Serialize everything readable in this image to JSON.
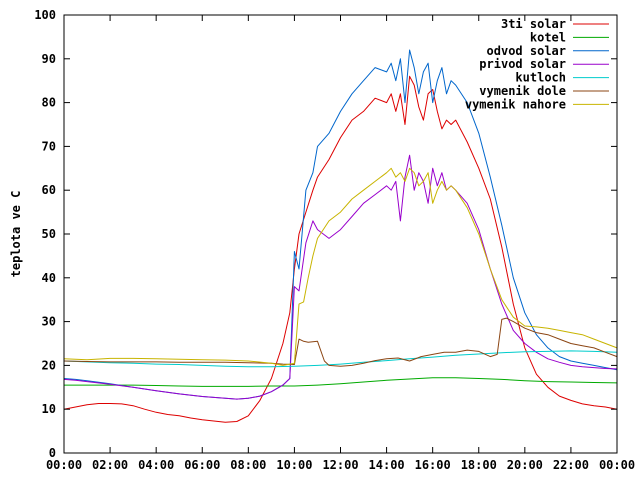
{
  "chart_data": {
    "type": "line",
    "title": "",
    "xlabel": "",
    "ylabel": "teplota ve C",
    "xlim": [
      0,
      24
    ],
    "ylim": [
      0,
      100
    ],
    "x_ticks": [
      "00:00",
      "02:00",
      "04:00",
      "06:00",
      "08:00",
      "10:00",
      "12:00",
      "14:00",
      "16:00",
      "18:00",
      "20:00",
      "22:00",
      "00:00"
    ],
    "y_ticks": [
      0,
      10,
      20,
      30,
      40,
      50,
      60,
      70,
      80,
      90,
      100
    ],
    "grid": false,
    "legend_position": "top-right",
    "series": [
      {
        "name": "3ti solar",
        "color": "#dd0000",
        "x": [
          0,
          0.5,
          1,
          1.5,
          2,
          2.5,
          3,
          3.5,
          4,
          4.5,
          5,
          5.5,
          6,
          6.5,
          7,
          7.5,
          8,
          8.5,
          9,
          9.5,
          9.8,
          10,
          10.2,
          10.5,
          10.8,
          11,
          11.5,
          12,
          12.5,
          13,
          13.5,
          14,
          14.2,
          14.4,
          14.6,
          14.8,
          15,
          15.2,
          15.4,
          15.6,
          15.8,
          16,
          16.2,
          16.4,
          16.6,
          16.8,
          17,
          17.5,
          18,
          18.5,
          19,
          19.5,
          20,
          20.5,
          21,
          21.5,
          22,
          22.5,
          23,
          23.5,
          24
        ],
        "y": [
          10,
          10.5,
          11,
          11.3,
          11.3,
          11.2,
          10.8,
          10,
          9.3,
          8.8,
          8.5,
          8,
          7.6,
          7.3,
          7,
          7.2,
          8.5,
          12,
          17,
          25,
          32,
          42,
          50,
          55,
          60,
          63,
          67,
          72,
          76,
          78,
          81,
          80,
          82,
          78,
          82,
          75,
          86,
          84,
          79,
          76,
          82,
          83,
          78,
          74,
          76,
          75,
          76,
          71,
          65,
          58,
          47,
          34,
          24,
          18,
          15,
          13,
          12,
          11.2,
          10.8,
          10.5,
          10
        ]
      },
      {
        "name": "kotel",
        "color": "#00aa00",
        "x": [
          0,
          1,
          2,
          3,
          4,
          5,
          6,
          7,
          8,
          9,
          10,
          11,
          12,
          13,
          14,
          15,
          16,
          17,
          18,
          19,
          20,
          21,
          22,
          23,
          24
        ],
        "y": [
          15.5,
          15.5,
          15.5,
          15.5,
          15.4,
          15.3,
          15.2,
          15.2,
          15.2,
          15.3,
          15.3,
          15.5,
          15.8,
          16.2,
          16.6,
          16.9,
          17.2,
          17.2,
          17,
          16.8,
          16.5,
          16.3,
          16.2,
          16.1,
          16
        ]
      },
      {
        "name": "odvod solar",
        "color": "#0066cc",
        "x": [
          0,
          0.5,
          1,
          2,
          3,
          4,
          5,
          6,
          7,
          7.5,
          8,
          8.5,
          9,
          9.5,
          9.8,
          10,
          10.2,
          10.5,
          10.8,
          11,
          11.5,
          12,
          12.5,
          13,
          13.5,
          14,
          14.2,
          14.4,
          14.6,
          14.8,
          15,
          15.2,
          15.4,
          15.6,
          15.8,
          16,
          16.2,
          16.4,
          16.6,
          16.8,
          17,
          17.5,
          18,
          18.5,
          19,
          19.5,
          20,
          20.5,
          21,
          21.5,
          22,
          22.5,
          23,
          23.5,
          24
        ],
        "y": [
          17,
          16.8,
          16.5,
          15.8,
          15,
          14.2,
          13.5,
          12.9,
          12.5,
          12.3,
          12.5,
          13,
          14,
          15.5,
          17,
          46,
          42,
          60,
          64,
          70,
          73,
          78,
          82,
          85,
          88,
          87,
          89,
          85,
          90,
          80,
          92,
          88,
          82,
          87,
          89,
          80,
          85,
          88,
          82,
          85,
          84,
          80,
          73,
          63,
          52,
          40,
          32,
          27,
          24,
          22,
          21,
          20.5,
          20,
          19.5,
          19
        ]
      },
      {
        "name": "privod solar",
        "color": "#9900cc",
        "x": [
          0,
          0.5,
          1,
          2,
          3,
          4,
          5,
          6,
          7,
          7.5,
          8,
          8.5,
          9,
          9.5,
          9.8,
          10,
          10.2,
          10.5,
          10.8,
          11,
          11.5,
          12,
          12.5,
          13,
          13.5,
          14,
          14.2,
          14.4,
          14.6,
          14.8,
          15,
          15.2,
          15.4,
          15.6,
          15.8,
          16,
          16.2,
          16.4,
          16.6,
          16.8,
          17,
          17.5,
          18,
          18.5,
          19,
          19.5,
          20,
          20.5,
          21,
          21.5,
          22,
          22.5,
          23,
          23.5,
          24
        ],
        "y": [
          16.8,
          16.6,
          16.3,
          15.7,
          15,
          14.2,
          13.5,
          12.9,
          12.5,
          12.3,
          12.5,
          13,
          14,
          15.5,
          17,
          38,
          37,
          48,
          53,
          51,
          49,
          51,
          54,
          57,
          59,
          61,
          60,
          62,
          53,
          63,
          68,
          60,
          64,
          62,
          57,
          65,
          61,
          64,
          60,
          61,
          60,
          57,
          51,
          42,
          34,
          28,
          25,
          23,
          21.5,
          20.7,
          20,
          19.7,
          19.5,
          19.3,
          19.2
        ]
      },
      {
        "name": "kutloch",
        "color": "#00cccc",
        "x": [
          0,
          1,
          2,
          3,
          4,
          5,
          6,
          7,
          8,
          9,
          10,
          11,
          12,
          13,
          14,
          15,
          16,
          17,
          18,
          19,
          20,
          21,
          22,
          23,
          24
        ],
        "y": [
          21,
          20.8,
          20.6,
          20.5,
          20.3,
          20.2,
          20,
          19.8,
          19.7,
          19.7,
          19.8,
          20,
          20.3,
          20.7,
          21.1,
          21.5,
          21.9,
          22.3,
          22.6,
          22.9,
          23.1,
          23.2,
          23.3,
          23.2,
          23
        ]
      },
      {
        "name": "vymenik dole",
        "color": "#8b4513",
        "x": [
          0,
          1,
          2,
          3,
          4,
          5,
          6,
          7,
          8,
          9,
          9.5,
          10,
          10.2,
          10.4,
          10.6,
          11,
          11.3,
          11.5,
          12,
          12.5,
          13,
          13.5,
          14,
          14.5,
          15,
          15.5,
          16,
          16.5,
          17,
          17.5,
          18,
          18.5,
          18.8,
          19,
          19.2,
          19.5,
          20,
          20.5,
          21,
          21.5,
          22,
          22.5,
          23,
          23.5,
          24
        ],
        "y": [
          21,
          20.9,
          20.8,
          20.8,
          20.8,
          20.7,
          20.7,
          20.7,
          20.6,
          20.5,
          20.3,
          20.2,
          26,
          25.5,
          25.3,
          25.5,
          21,
          20,
          19.8,
          20,
          20.5,
          21.1,
          21.5,
          21.7,
          21,
          22,
          22.5,
          23,
          23,
          23.5,
          23.2,
          22,
          22.5,
          30.5,
          30.8,
          30,
          28.5,
          27.5,
          27,
          26,
          25,
          24.5,
          24,
          23,
          22
        ]
      },
      {
        "name": "vymenik nahore",
        "color": "#c8b400",
        "x": [
          0,
          1,
          2,
          3,
          4,
          5,
          6,
          7,
          8,
          9,
          9.5,
          10,
          10.2,
          10.4,
          10.6,
          10.8,
          11,
          11.5,
          12,
          12.5,
          13,
          13.5,
          14,
          14.2,
          14.4,
          14.6,
          14.8,
          15,
          15.2,
          15.4,
          15.6,
          15.8,
          16,
          16.2,
          16.4,
          16.6,
          16.8,
          17,
          17.5,
          18,
          18.5,
          19,
          19.5,
          20,
          20.5,
          21,
          21.5,
          22,
          22.5,
          23,
          23.5,
          24
        ],
        "y": [
          21.5,
          21.3,
          21.6,
          21.6,
          21.5,
          21.4,
          21.3,
          21.2,
          21,
          20.5,
          20,
          20.5,
          34,
          34.5,
          40,
          45,
          49,
          53,
          55,
          58,
          60,
          62,
          64,
          65,
          63,
          64,
          62,
          65,
          64,
          61,
          62,
          64,
          57,
          60,
          62,
          60,
          61,
          60,
          56,
          50,
          42,
          35,
          31,
          29,
          28.8,
          28.5,
          28,
          27.5,
          27,
          26,
          25,
          24
        ]
      }
    ]
  }
}
